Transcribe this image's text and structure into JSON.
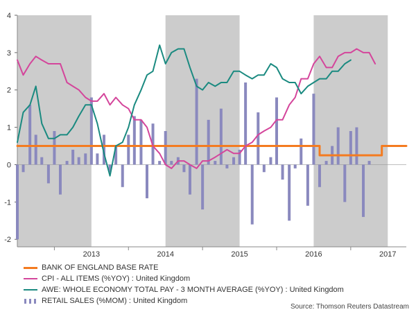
{
  "chart_data": {
    "type": "bar+line",
    "ylim": [
      -2.2,
      4
    ],
    "yticks": [
      -2,
      -1,
      0,
      1,
      2,
      3,
      4
    ],
    "x_tick_labels": [
      "2013",
      "2014",
      "2015",
      "2016",
      "2017"
    ],
    "x_range": [
      2012.5,
      2017.75
    ],
    "shaded_periods": [
      [
        2012.5,
        2013.5
      ],
      [
        2014.5,
        2015.5
      ],
      [
        2016.5,
        2017.5
      ]
    ],
    "colors": {
      "base_rate": "#f47b20",
      "cpi": "#d4459b",
      "awe": "#1a8a80",
      "retail": "#8a89be",
      "shade": "#cccccc"
    },
    "series": [
      {
        "name": "BANK OF ENGLAND BASE RATE",
        "kind": "step",
        "points": [
          [
            2012.5,
            0.5
          ],
          [
            2016.58,
            0.5
          ],
          [
            2016.58,
            0.25
          ],
          [
            2017.42,
            0.25
          ],
          [
            2017.42,
            0.5
          ],
          [
            2017.75,
            0.5
          ]
        ]
      },
      {
        "name": "CPI - ALL ITEMS (%YOY) : United Kingdom",
        "kind": "line",
        "points": [
          [
            2012.5,
            2.8
          ],
          [
            2012.58,
            2.4
          ],
          [
            2012.67,
            2.7
          ],
          [
            2012.75,
            2.9
          ],
          [
            2012.83,
            2.8
          ],
          [
            2012.92,
            2.7
          ],
          [
            2013.0,
            2.7
          ],
          [
            2013.08,
            2.7
          ],
          [
            2013.17,
            2.2
          ],
          [
            2013.25,
            2.1
          ],
          [
            2013.33,
            2.0
          ],
          [
            2013.42,
            1.8
          ],
          [
            2013.5,
            1.7
          ],
          [
            2013.58,
            1.7
          ],
          [
            2013.67,
            1.9
          ],
          [
            2013.75,
            1.6
          ],
          [
            2013.83,
            1.8
          ],
          [
            2013.92,
            1.6
          ],
          [
            2014.0,
            1.5
          ],
          [
            2014.08,
            1.2
          ],
          [
            2014.17,
            1.2
          ],
          [
            2014.25,
            1.0
          ],
          [
            2014.33,
            0.5
          ],
          [
            2014.42,
            0.3
          ],
          [
            2014.5,
            0.0
          ],
          [
            2014.58,
            -0.1
          ],
          [
            2014.67,
            0.1
          ],
          [
            2014.75,
            0.1
          ],
          [
            2014.83,
            0.0
          ],
          [
            2014.92,
            -0.1
          ],
          [
            2015.0,
            0.1
          ],
          [
            2015.08,
            0.1
          ],
          [
            2015.17,
            0.2
          ],
          [
            2015.25,
            0.3
          ],
          [
            2015.33,
            0.4
          ],
          [
            2015.42,
            0.3
          ],
          [
            2015.5,
            0.3
          ],
          [
            2015.58,
            0.5
          ],
          [
            2015.67,
            0.6
          ],
          [
            2015.75,
            0.8
          ],
          [
            2015.83,
            0.9
          ],
          [
            2015.92,
            1.0
          ],
          [
            2016.0,
            1.2
          ],
          [
            2016.08,
            1.2
          ],
          [
            2016.17,
            1.6
          ],
          [
            2016.25,
            1.8
          ],
          [
            2016.33,
            2.3
          ],
          [
            2016.42,
            2.3
          ],
          [
            2016.5,
            2.7
          ],
          [
            2016.58,
            2.9
          ],
          [
            2016.67,
            2.6
          ],
          [
            2016.75,
            2.6
          ],
          [
            2016.83,
            2.9
          ],
          [
            2016.92,
            3.0
          ],
          [
            2017.0,
            3.0
          ],
          [
            2017.08,
            3.1
          ],
          [
            2017.17,
            3.0
          ],
          [
            2017.25,
            3.0
          ],
          [
            2017.33,
            2.7
          ]
        ]
      },
      {
        "name": "AWE: WHOLE ECONOMY TOTAL PAY - 3 MONTH AVERAGE (%YOY) : United Kingdom",
        "kind": "line",
        "points": [
          [
            2012.5,
            0.6
          ],
          [
            2012.58,
            1.4
          ],
          [
            2012.67,
            1.6
          ],
          [
            2012.75,
            2.1
          ],
          [
            2012.83,
            1.1
          ],
          [
            2012.92,
            0.7
          ],
          [
            2013.0,
            0.7
          ],
          [
            2013.08,
            0.8
          ],
          [
            2013.17,
            0.8
          ],
          [
            2013.25,
            1.0
          ],
          [
            2013.33,
            1.3
          ],
          [
            2013.42,
            1.6
          ],
          [
            2013.5,
            1.6
          ],
          [
            2013.58,
            1.1
          ],
          [
            2013.67,
            0.3
          ],
          [
            2013.75,
            -0.3
          ],
          [
            2013.83,
            0.5
          ],
          [
            2013.92,
            0.6
          ],
          [
            2014.0,
            1.0
          ],
          [
            2014.08,
            1.6
          ],
          [
            2014.17,
            2.0
          ],
          [
            2014.25,
            2.4
          ],
          [
            2014.33,
            2.5
          ],
          [
            2014.42,
            3.2
          ],
          [
            2014.5,
            2.7
          ],
          [
            2014.58,
            3.0
          ],
          [
            2014.67,
            3.1
          ],
          [
            2014.75,
            3.1
          ],
          [
            2014.83,
            2.6
          ],
          [
            2014.92,
            2.1
          ],
          [
            2015.0,
            2.0
          ],
          [
            2015.08,
            2.2
          ],
          [
            2015.17,
            2.1
          ],
          [
            2015.25,
            2.2
          ],
          [
            2015.33,
            2.2
          ],
          [
            2015.42,
            2.5
          ],
          [
            2015.5,
            2.5
          ],
          [
            2015.58,
            2.4
          ],
          [
            2015.67,
            2.3
          ],
          [
            2015.75,
            2.4
          ],
          [
            2015.83,
            2.4
          ],
          [
            2015.92,
            2.7
          ],
          [
            2016.0,
            2.6
          ],
          [
            2016.08,
            2.3
          ],
          [
            2016.17,
            2.2
          ],
          [
            2016.25,
            2.2
          ],
          [
            2016.33,
            1.9
          ],
          [
            2016.42,
            2.1
          ],
          [
            2016.5,
            2.2
          ],
          [
            2016.58,
            2.3
          ],
          [
            2016.67,
            2.3
          ],
          [
            2016.75,
            2.5
          ],
          [
            2016.83,
            2.5
          ],
          [
            2016.92,
            2.7
          ],
          [
            2017.0,
            2.8
          ]
        ]
      },
      {
        "name": "RETAIL SALES (%MOM) : United Kingdom",
        "kind": "bar",
        "points": [
          [
            2012.5,
            -2.0
          ],
          [
            2012.58,
            -0.2
          ],
          [
            2012.67,
            1.6
          ],
          [
            2012.75,
            0.8
          ],
          [
            2012.83,
            0.2
          ],
          [
            2012.92,
            -0.5
          ],
          [
            2013.0,
            0.9
          ],
          [
            2013.08,
            -0.8
          ],
          [
            2013.17,
            0.1
          ],
          [
            2013.25,
            0.4
          ],
          [
            2013.33,
            0.2
          ],
          [
            2013.42,
            0.3
          ],
          [
            2013.5,
            1.8
          ],
          [
            2013.58,
            0.3
          ],
          [
            2013.67,
            0.8
          ],
          [
            2013.75,
            -0.2
          ],
          [
            2013.83,
            0.5
          ],
          [
            2013.92,
            -0.6
          ],
          [
            2014.0,
            0.8
          ],
          [
            2014.08,
            1.3
          ],
          [
            2014.17,
            1.2
          ],
          [
            2014.25,
            -0.9
          ],
          [
            2014.33,
            1.1
          ],
          [
            2014.42,
            0.1
          ],
          [
            2014.5,
            0.9
          ],
          [
            2014.58,
            0.1
          ],
          [
            2014.67,
            0.2
          ],
          [
            2014.75,
            -0.2
          ],
          [
            2014.83,
            -0.8
          ],
          [
            2014.92,
            2.3
          ],
          [
            2015.0,
            -1.2
          ],
          [
            2015.08,
            1.2
          ],
          [
            2015.17,
            0.1
          ],
          [
            2015.25,
            1.5
          ],
          [
            2015.33,
            -0.1
          ],
          [
            2015.42,
            0.2
          ],
          [
            2015.5,
            0.4
          ],
          [
            2015.58,
            2.2
          ],
          [
            2015.67,
            -1.6
          ],
          [
            2015.75,
            1.4
          ],
          [
            2015.83,
            -0.2
          ],
          [
            2015.92,
            0.2
          ],
          [
            2016.0,
            1.8
          ],
          [
            2016.08,
            -0.4
          ],
          [
            2016.17,
            -1.5
          ],
          [
            2016.25,
            -0.1
          ],
          [
            2016.33,
            0.7
          ],
          [
            2016.42,
            -1.1
          ],
          [
            2016.5,
            1.9
          ],
          [
            2016.58,
            -0.6
          ],
          [
            2016.67,
            0.1
          ],
          [
            2016.75,
            0.5
          ],
          [
            2016.83,
            1.0
          ],
          [
            2016.92,
            -1.0
          ],
          [
            2017.0,
            0.9
          ],
          [
            2017.08,
            1.0
          ],
          [
            2017.17,
            -1.4
          ],
          [
            2017.25,
            0.1
          ]
        ]
      }
    ]
  },
  "legend": [
    {
      "key": "base_rate",
      "label": "BANK OF ENGLAND BASE RATE"
    },
    {
      "key": "cpi",
      "label": "CPI - ALL ITEMS (%YOY) : United Kingdom"
    },
    {
      "key": "awe",
      "label": "AWE: WHOLE ECONOMY TOTAL PAY - 3 MONTH AVERAGE (%YOY) : United Kingdom"
    },
    {
      "key": "retail",
      "label": "RETAIL SALES (%MOM) : United Kingdom"
    }
  ],
  "source": "Source: Thomson Reuters Datastream"
}
